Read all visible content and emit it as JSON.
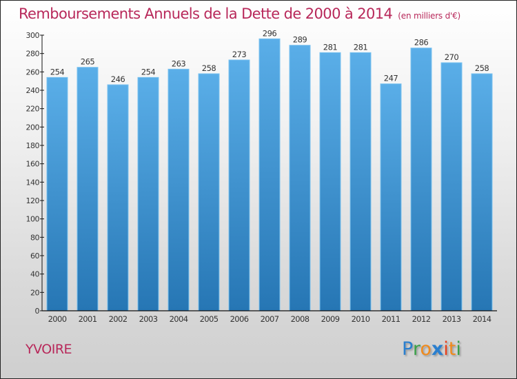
{
  "header": {
    "title": "Remboursements Annuels de la Dette de 2000 à 2014",
    "unit": "(en milliers d'€)"
  },
  "footer": {
    "city": "YVOIRE",
    "logo": {
      "letters": [
        "P",
        "r",
        "o",
        "x",
        "i",
        "t",
        "i"
      ],
      "colors": [
        "#2a7fcf",
        "#3aa048",
        "#f08a1c",
        "#2a7fcf",
        "#e8401c",
        "#f08a1c",
        "#3aa048"
      ]
    }
  },
  "colors": {
    "title": "#b8285a",
    "bar_top": "#5aaee8",
    "bar_bottom": "#2676b4",
    "bar_edge": "#7cc3f0",
    "axis": "#111111",
    "label": "#333333"
  },
  "chart_data": {
    "type": "bar",
    "title": "Remboursements Annuels de la Dette de 2000 à 2014",
    "subtitle": "(en milliers d'€)",
    "xlabel": "",
    "ylabel": "",
    "categories": [
      "2000",
      "2001",
      "2002",
      "2003",
      "2004",
      "2005",
      "2006",
      "2007",
      "2008",
      "2009",
      "2010",
      "2011",
      "2012",
      "2013",
      "2014"
    ],
    "values": [
      254,
      265,
      246,
      254,
      263,
      258,
      273,
      296,
      289,
      281,
      281,
      247,
      286,
      270,
      258
    ],
    "data_labels": [
      "254",
      "265",
      "246",
      "254",
      "263",
      "258",
      "273",
      "296",
      "289",
      "281",
      "281",
      "247",
      "286",
      "270",
      "258"
    ],
    "ylim": [
      0,
      300
    ],
    "yticks": [
      0,
      20,
      40,
      60,
      80,
      100,
      120,
      140,
      160,
      180,
      200,
      220,
      240,
      260,
      280,
      300
    ],
    "grid": false,
    "legend": "none"
  }
}
